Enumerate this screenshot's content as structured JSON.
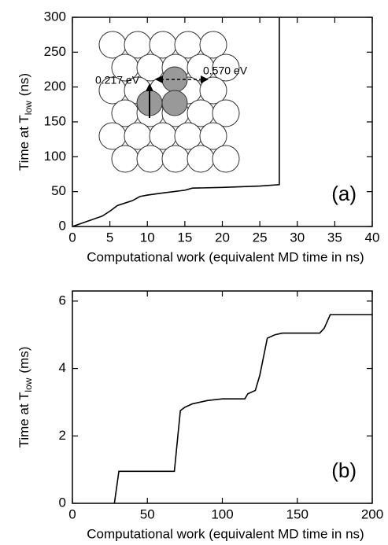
{
  "chart_data": [
    {
      "type": "line",
      "panel_label": "(a)",
      "x_label": "Computational work (equivalent MD time in ns)",
      "y_label": "Time at T",
      "y_label_subscript": "low",
      "y_label_unit": "(ns)",
      "annotations": [
        "0.217 eV",
        "0.570 eV"
      ],
      "x": [
        0,
        4,
        5,
        6,
        8,
        9,
        10,
        12,
        15,
        16,
        20,
        25,
        27.6,
        27.6
      ],
      "values": [
        0,
        15,
        22,
        30,
        37,
        43,
        45,
        48,
        52,
        55,
        56,
        58,
        60,
        300
      ],
      "color": "#000000",
      "xlim": [
        0,
        40
      ],
      "ylim": [
        0,
        300
      ],
      "xticks": [
        0,
        5,
        10,
        15,
        20,
        25,
        30,
        35,
        40
      ],
      "yticks": [
        0,
        50,
        100,
        150,
        200,
        250,
        300
      ]
    },
    {
      "type": "line",
      "panel_label": "(b)",
      "x_label": "Computational work (equivalent MD time in ns)",
      "y_label": "Time at T",
      "y_label_subscript": "low",
      "y_label_unit": "(ms)",
      "x": [
        28,
        31,
        68,
        72,
        75,
        80,
        90,
        100,
        115,
        117,
        122,
        125,
        130,
        135,
        140,
        165,
        168,
        172,
        200
      ],
      "values": [
        0,
        0.95,
        0.95,
        2.75,
        2.85,
        2.95,
        3.05,
        3.1,
        3.1,
        3.25,
        3.35,
        3.8,
        4.9,
        5.0,
        5.05,
        5.05,
        5.2,
        5.6,
        5.6
      ],
      "color": "#000000",
      "xlim": [
        0,
        200
      ],
      "ylim": [
        0,
        6.3
      ],
      "xticks": [
        0,
        50,
        100,
        150,
        200
      ],
      "yticks": [
        0,
        2,
        4,
        6
      ]
    }
  ]
}
